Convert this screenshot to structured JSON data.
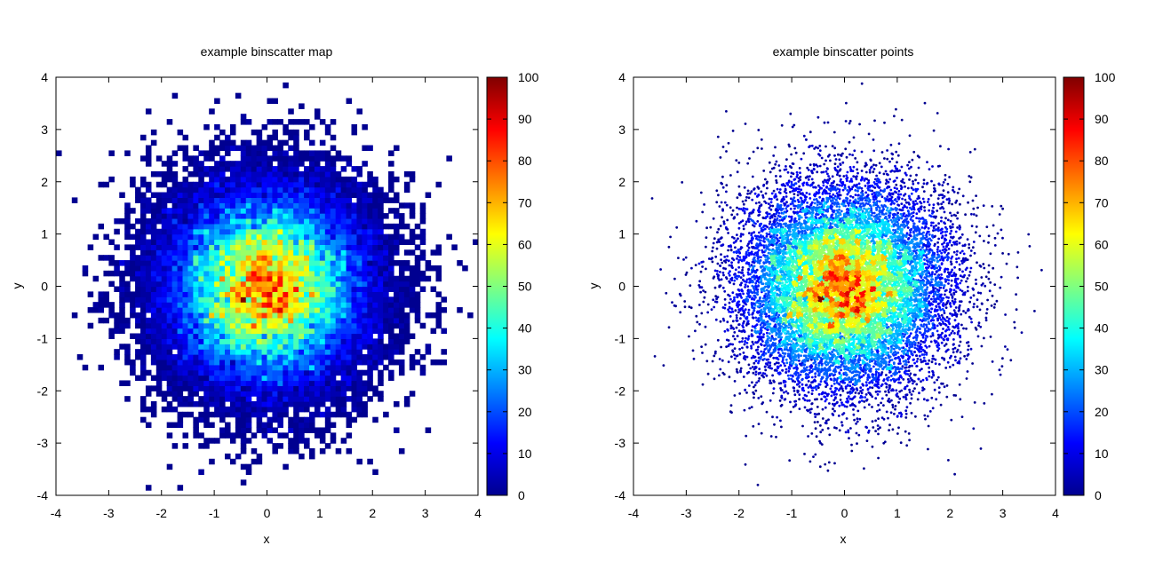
{
  "chart_data": [
    {
      "type": "heatmap",
      "title": "example binscatter map",
      "xlabel": "x",
      "ylabel": "y",
      "xlim": [
        -4,
        4
      ],
      "ylim": [
        -4,
        4
      ],
      "xticks": [
        "-4",
        "-3",
        "-2",
        "-1",
        "0",
        "1",
        "2",
        "3",
        "4"
      ],
      "yticks": [
        "-4",
        "-3",
        "-2",
        "-1",
        "0",
        "1",
        "2",
        "3",
        "4"
      ],
      "bin_width": 0.1,
      "distribution": "bivariate standard normal, centered at (0, 0), count peaks near 100 at the center",
      "colorbar": {
        "range": [
          0,
          100
        ],
        "ticks": [
          "0",
          "10",
          "20",
          "30",
          "40",
          "50",
          "60",
          "70",
          "80",
          "90",
          "100"
        ],
        "colormap": "jet"
      },
      "grid": false
    },
    {
      "type": "scatter",
      "title": "example binscatter points",
      "xlabel": "x",
      "ylabel": "y",
      "xlim": [
        -4,
        4
      ],
      "ylim": [
        -4,
        4
      ],
      "xticks": [
        "-4",
        "-3",
        "-2",
        "-1",
        "0",
        "1",
        "2",
        "3",
        "4"
      ],
      "yticks": [
        "-4",
        "-3",
        "-2",
        "-1",
        "0",
        "1",
        "2",
        "3",
        "4"
      ],
      "distribution": "bivariate standard normal points colored by local bin count",
      "colorbar": {
        "range": [
          0,
          100
        ],
        "ticks": [
          "0",
          "10",
          "20",
          "30",
          "40",
          "50",
          "60",
          "70",
          "80",
          "90",
          "100"
        ],
        "colormap": "jet"
      },
      "grid": false
    }
  ]
}
